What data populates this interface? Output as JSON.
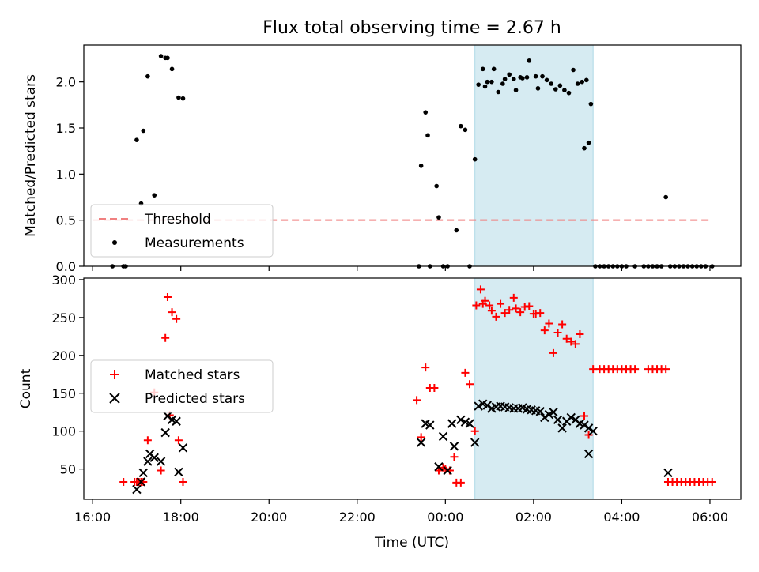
{
  "chart_data": {
    "title": "Flux total observing time = 2.67 h",
    "xlabel": "Time (UTC)",
    "x_unit": "hours relative to 00:00 UTC",
    "xlim": [
      -8.2,
      6.7
    ],
    "xticks": [
      -8,
      -6,
      -4,
      -2,
      0,
      2,
      4,
      6
    ],
    "xtick_labels": [
      "16:00",
      "18:00",
      "20:00",
      "22:00",
      "00:00",
      "02:00",
      "04:00",
      "06:00"
    ],
    "highlight": {
      "x0": 0.67,
      "x1": 3.35,
      "color": "#add8e6"
    },
    "panels": [
      {
        "type": "scatter",
        "ylabel": "Matched/Predicted stars",
        "ylim": [
          0,
          2.4
        ],
        "yticks": [
          0.0,
          0.5,
          1.0,
          1.5,
          2.0
        ],
        "ytick_labels": [
          "0.0",
          "0.5",
          "1.0",
          "1.5",
          "2.0"
        ],
        "legend_position": "lower-left",
        "threshold": {
          "name": "Threshold",
          "value": 0.5,
          "x_range": [
            -8.0,
            6.0
          ],
          "color": "#f08080"
        },
        "series": [
          {
            "name": "Measurements",
            "marker": "dot",
            "color": "#000000",
            "x": [
              -7.55,
              -7.3,
              -7.25,
              -7.0,
              -6.9,
              -6.85,
              -6.75,
              -6.6,
              -6.45,
              -6.35,
              -6.3,
              -6.2,
              -6.05,
              -5.95,
              -0.6,
              -0.55,
              -0.45,
              -0.4,
              -0.35,
              -0.2,
              -0.15,
              -0.05,
              0.05,
              0.25,
              0.35,
              0.45,
              0.55,
              0.67,
              0.75,
              0.85,
              0.9,
              0.95,
              1.05,
              1.1,
              1.2,
              1.3,
              1.35,
              1.45,
              1.55,
              1.6,
              1.7,
              1.75,
              1.85,
              1.9,
              2.05,
              2.1,
              2.2,
              2.3,
              2.4,
              2.5,
              2.6,
              2.7,
              2.8,
              2.9,
              3.0,
              3.1,
              3.2,
              3.3,
              3.4,
              3.15,
              3.25,
              3.5,
              3.6,
              3.7,
              3.8,
              3.9,
              4.0,
              4.1,
              4.3,
              4.5,
              4.6,
              4.7,
              4.8,
              4.9,
              5.0,
              5.1,
              5.2,
              5.3,
              5.4,
              5.5,
              5.6,
              5.7,
              5.8,
              5.9,
              6.05
            ],
            "y": [
              0.0,
              0.0,
              0.0,
              1.37,
              0.68,
              1.47,
              2.06,
              0.77,
              2.28,
              2.26,
              2.26,
              2.14,
              1.83,
              1.82,
              0.0,
              1.09,
              1.67,
              1.42,
              0.0,
              0.87,
              0.53,
              0.0,
              0.0,
              0.39,
              1.52,
              1.48,
              0.0,
              1.16,
              1.97,
              2.14,
              1.95,
              2.0,
              2.0,
              2.14,
              1.89,
              1.98,
              2.03,
              2.08,
              2.03,
              1.91,
              2.05,
              2.04,
              2.05,
              2.23,
              2.06,
              1.93,
              2.06,
              2.02,
              1.98,
              1.92,
              1.96,
              1.91,
              1.88,
              2.13,
              1.98,
              2.0,
              2.02,
              1.76,
              0.0,
              1.28,
              1.34,
              0.0,
              0.0,
              0.0,
              0.0,
              0.0,
              0.0,
              0.0,
              0.0,
              0.0,
              0.0,
              0.0,
              0.0,
              0.0,
              0.75,
              0.0,
              0.0,
              0.0,
              0.0,
              0.0,
              0.0,
              0.0,
              0.0,
              0.0,
              0.0
            ]
          }
        ]
      },
      {
        "type": "scatter",
        "ylabel": "Count",
        "ylim": [
          10,
          302
        ],
        "yticks": [
          50,
          100,
          150,
          200,
          250,
          300
        ],
        "ytick_labels": [
          "50",
          "100",
          "150",
          "200",
          "250",
          "300"
        ],
        "legend_position": "center-left",
        "series": [
          {
            "name": "Matched stars",
            "marker": "plus",
            "color": "#ff0000",
            "x": [
              -7.3,
              -7.0,
              -6.9,
              -6.85,
              -6.75,
              -6.6,
              -6.45,
              -6.35,
              -6.3,
              -6.25,
              -6.2,
              -6.1,
              -6.05,
              -5.95,
              -6.95,
              -7.05,
              -0.65,
              -0.55,
              -0.45,
              -0.35,
              -0.25,
              -0.15,
              -0.05,
              0.0,
              0.1,
              0.2,
              0.25,
              0.35,
              0.45,
              0.55,
              0.67,
              0.7,
              0.8,
              0.85,
              0.9,
              1.0,
              1.05,
              1.15,
              1.25,
              1.35,
              1.45,
              1.55,
              1.6,
              1.7,
              1.8,
              1.9,
              2.0,
              2.05,
              2.15,
              2.25,
              2.35,
              2.45,
              2.55,
              2.65,
              2.75,
              2.85,
              2.95,
              3.05,
              3.15,
              3.25,
              3.35,
              3.5,
              3.6,
              3.7,
              3.8,
              3.9,
              4.0,
              4.1,
              4.2,
              4.3,
              4.6,
              4.7,
              4.8,
              4.9,
              5.0,
              5.05,
              5.15,
              5.25,
              5.35,
              5.45,
              5.55,
              5.65,
              5.75,
              5.85,
              5.95,
              6.05
            ],
            "y": [
              33,
              33,
              33,
              33,
              88,
              151,
              48,
              223,
              277,
              121,
              257,
              248,
              88,
              33,
              33,
              33,
              141,
              92,
              184,
              157,
              157,
              48,
              52,
              50,
              48,
              66,
              32,
              32,
              177,
              162,
              100,
              266,
              287,
              268,
              272,
              266,
              259,
              251,
              268,
              256,
              260,
              276,
              262,
              257,
              264,
              265,
              255,
              255,
              256,
              233,
              242,
              203,
              230,
              241,
              222,
              218,
              215,
              228,
              120,
              95,
              182,
              182,
              182,
              182,
              182,
              182,
              182,
              182,
              182,
              182,
              182,
              182,
              182,
              182,
              182,
              33,
              33,
              33,
              33,
              33,
              33,
              33,
              33,
              33,
              33,
              33
            ]
          },
          {
            "name": "Predicted stars",
            "marker": "x",
            "color": "#000000",
            "x": [
              -7.0,
              -6.9,
              -6.85,
              -6.75,
              -6.7,
              -6.6,
              -6.45,
              -6.35,
              -6.3,
              -6.2,
              -6.1,
              -6.05,
              -5.95,
              -0.55,
              -0.45,
              -0.35,
              -0.15,
              -0.05,
              0.05,
              0.15,
              0.2,
              0.35,
              0.45,
              0.55,
              0.67,
              0.75,
              0.85,
              0.95,
              1.05,
              1.15,
              1.25,
              1.35,
              1.45,
              1.55,
              1.65,
              1.75,
              1.85,
              1.95,
              2.05,
              2.15,
              2.25,
              2.35,
              2.45,
              2.55,
              2.65,
              2.75,
              2.85,
              2.95,
              3.05,
              3.15,
              3.25,
              3.35,
              3.25,
              5.05
            ],
            "y": [
              23,
              33,
              45,
              60,
              70,
              65,
              60,
              98,
              120,
              115,
              113,
              46,
              78,
              85,
              110,
              108,
              53,
              93,
              48,
              110,
              80,
              115,
              112,
              110,
              85,
              133,
              136,
              134,
              130,
              132,
              133,
              132,
              131,
              130,
              130,
              131,
              129,
              128,
              127,
              126,
              118,
              122,
              125,
              115,
              104,
              113,
              118,
              115,
              110,
              108,
              104,
              100,
              70,
              45
            ]
          }
        ]
      }
    ]
  }
}
